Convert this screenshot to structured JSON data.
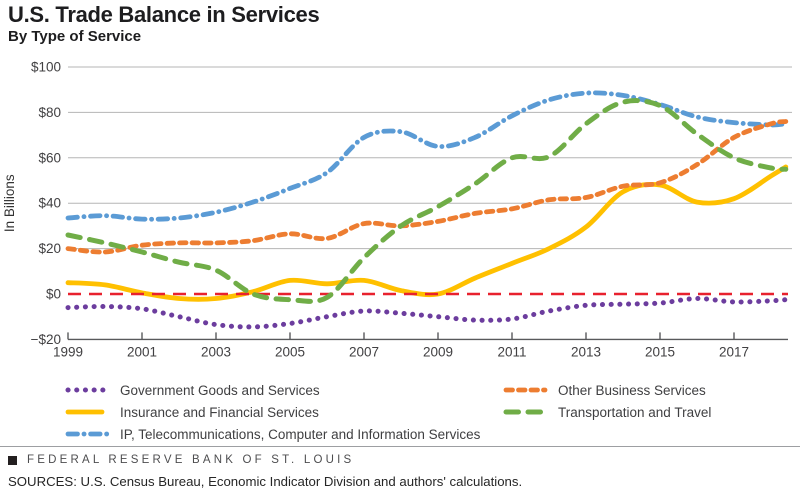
{
  "header": {
    "title": "U.S. Trade Balance in Services",
    "subtitle": "By Type of Service"
  },
  "chart_data": {
    "type": "line",
    "title": "U.S. Trade Balance in Services",
    "subtitle": "By Type of Service",
    "xlabel": "",
    "ylabel": "In Billions",
    "xlim": [
      1999,
      2018.4
    ],
    "ylim": [
      -20,
      100
    ],
    "grid": true,
    "legend_position": "bottom",
    "yticks": {
      "values": [
        100,
        80,
        60,
        40,
        20,
        0,
        -20
      ],
      "labels": [
        "$100",
        "$80",
        "$60",
        "$40",
        "$20",
        "$0",
        "−$20"
      ]
    },
    "xticks": [
      1999,
      2001,
      2003,
      2005,
      2007,
      2009,
      2011,
      2013,
      2015,
      2017
    ],
    "x": [
      1999,
      2000,
      2001,
      2002,
      2003,
      2004,
      2005,
      2006,
      2007,
      2008,
      2009,
      2010,
      2011,
      2012,
      2013,
      2014,
      2015,
      2016,
      2017,
      2018,
      2018.4
    ],
    "zero_line": {
      "value": 0,
      "color": "#e8212e",
      "style": "dashed"
    },
    "series": [
      {
        "name": "Government Goods and Services",
        "color": "#6c3d9e",
        "style": "dotted",
        "legend_column": "left",
        "values": [
          -6,
          -5.5,
          -6.5,
          -10,
          -13.5,
          -14.5,
          -13,
          -10,
          -7.5,
          -8.5,
          -10,
          -11.5,
          -11,
          -7.5,
          -5,
          -4.5,
          -4,
          -2,
          -3.5,
          -3,
          -2.5
        ]
      },
      {
        "name": "Insurance and Financial Services",
        "color": "#ffc000",
        "style": "solid",
        "legend_column": "left",
        "values": [
          5,
          4,
          0.5,
          -2,
          -2,
          1,
          6,
          4.5,
          6,
          1.5,
          0,
          7,
          13.5,
          20,
          29.5,
          45,
          48,
          40.5,
          42,
          52,
          56
        ]
      },
      {
        "name": "IP, Telecommunications, Computer and Information Services",
        "color": "#5b9bd5",
        "style": "dashdot",
        "legend_column": "left",
        "values": [
          33.5,
          34.5,
          33,
          33.5,
          36,
          40.5,
          46.5,
          53.5,
          69,
          71.5,
          65,
          69,
          78.5,
          85.5,
          88.5,
          87.5,
          83.5,
          78,
          75.5,
          74.5,
          75
        ]
      },
      {
        "name": "Other Business Services",
        "color": "#ed7d31",
        "style": "dashed",
        "legend_column": "right",
        "values": [
          20,
          18.5,
          21.5,
          22.5,
          22.5,
          23.5,
          26.5,
          24.5,
          31,
          30,
          32,
          35.5,
          37.5,
          41.5,
          42.5,
          47.5,
          49,
          57,
          69,
          75,
          76
        ]
      },
      {
        "name": "Transportation and Travel",
        "color": "#70ad47",
        "style": "longdash",
        "legend_column": "right",
        "values": [
          26,
          22.5,
          18.5,
          14,
          10.5,
          0,
          -2.5,
          -1.5,
          16,
          30,
          38.5,
          48.5,
          60,
          60.5,
          75,
          84.5,
          83,
          70.5,
          60,
          55.5,
          55
        ]
      }
    ]
  },
  "footer": {
    "brand": "FEDERAL RESERVE BANK OF ST. LOUIS",
    "sources": "SOURCES: U.S. Census Bureau, Economic Indicator Division and authors' calculations."
  }
}
